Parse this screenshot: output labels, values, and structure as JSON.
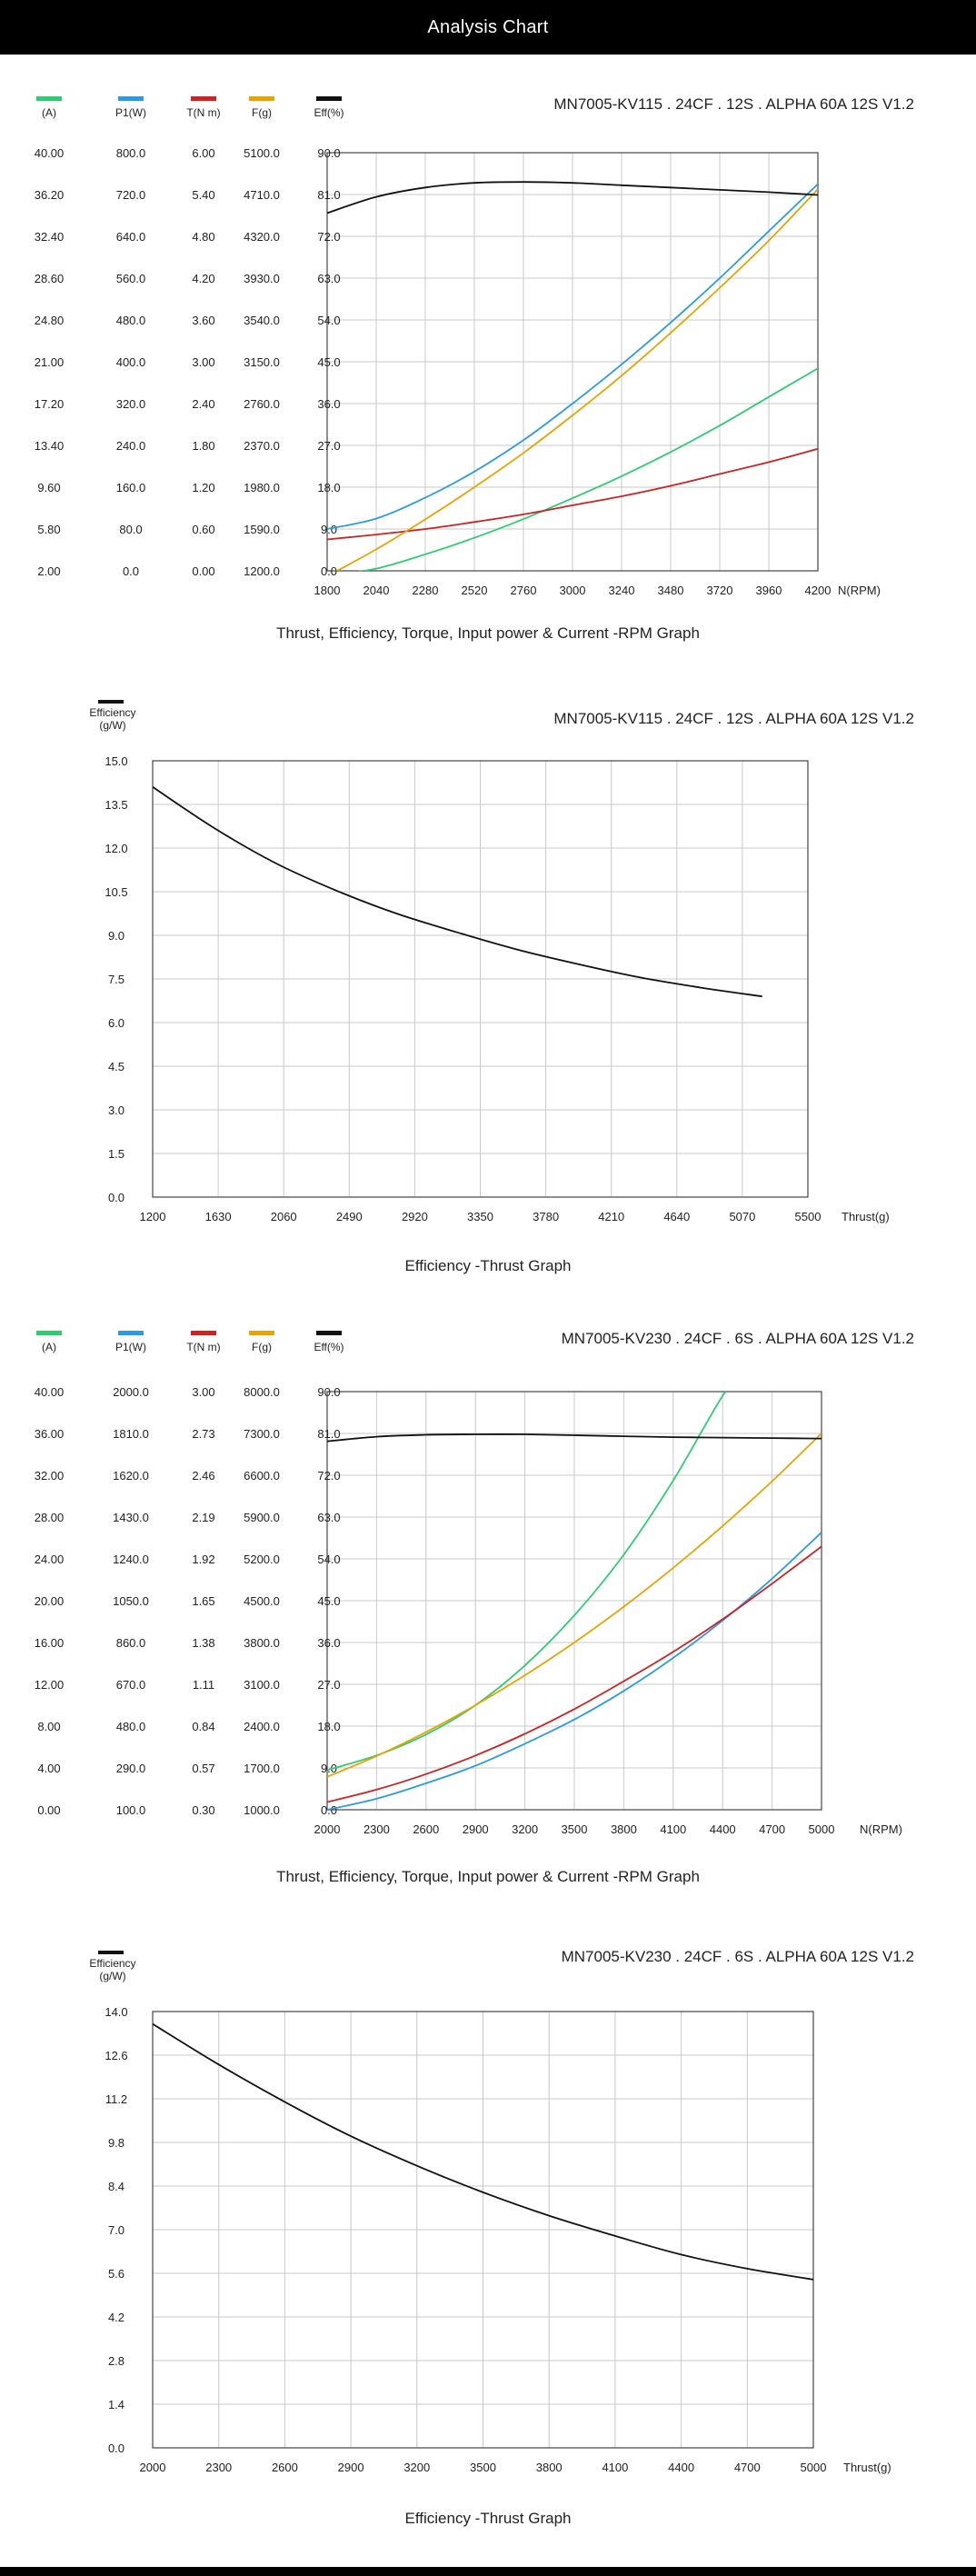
{
  "header": {
    "title": "Analysis Chart"
  },
  "charts": [
    {
      "model": "MN7005-KV115 . 24CF . 12S . ALPHA 60A 12S V1.2",
      "legend": [
        {
          "label": "(A)",
          "color": "#2ecc71"
        },
        {
          "label": "P1(W)",
          "color": "#2b9be0"
        },
        {
          "label": "T(N m)",
          "color": "#cc2222"
        },
        {
          "label": "F(g)",
          "color": "#e6a400"
        },
        {
          "label": "Eff(%)",
          "color": "#111111"
        }
      ],
      "caption": "Thrust, Efficiency, Torque, Input power & Current -RPM Graph"
    },
    {
      "model": "MN7005-KV115 . 24CF . 12S . ALPHA 60A 12S V1.2",
      "legend": [
        {
          "label": "Efficiency\n(g/W)",
          "color": "#111111"
        }
      ],
      "caption": "Efficiency -Thrust Graph"
    },
    {
      "model": "MN7005-KV230 . 24CF . 6S . ALPHA 60A 12S V1.2",
      "legend": [
        {
          "label": "(A)",
          "color": "#2ecc71"
        },
        {
          "label": "P1(W)",
          "color": "#2b9be0"
        },
        {
          "label": "T(N m)",
          "color": "#cc2222"
        },
        {
          "label": "F(g)",
          "color": "#e6a400"
        },
        {
          "label": "Eff(%)",
          "color": "#111111"
        }
      ],
      "caption": "Thrust, Efficiency, Torque, Input power & Current -RPM Graph"
    },
    {
      "model": "MN7005-KV230 . 24CF . 6S . ALPHA 60A 12S V1.2",
      "legend": [
        {
          "label": "Efficiency\n(g/W)",
          "color": "#111111"
        }
      ],
      "caption": "Efficiency -Thrust Graph"
    }
  ],
  "chart_data": [
    {
      "type": "line",
      "title": "Thrust, Efficiency, Torque, Input power & Current -RPM Graph",
      "subtitle": "MN7005-KV115 . 24CF . 12S . ALPHA 60A 12S V1.2",
      "xlabel": "N(RPM)",
      "xlim": [
        1800,
        4200
      ],
      "x_ticks": [
        "1800",
        "2040",
        "2280",
        "2520",
        "2760",
        "3000",
        "3240",
        "3480",
        "3720",
        "3960",
        "4200"
      ],
      "y_axes": [
        {
          "name": "(A)",
          "ticks": [
            "2.00",
            "5.80",
            "9.60",
            "13.40",
            "17.20",
            "21.00",
            "24.80",
            "28.60",
            "32.40",
            "36.20",
            "40.00"
          ]
        },
        {
          "name": "P1(W)",
          "ticks": [
            "0.0",
            "80.0",
            "160.0",
            "240.0",
            "320.0",
            "400.0",
            "480.0",
            "560.0",
            "640.0",
            "720.0",
            "800.0"
          ]
        },
        {
          "name": "T(N m)",
          "ticks": [
            "0.00",
            "0.60",
            "1.20",
            "1.80",
            "2.40",
            "3.00",
            "3.60",
            "4.20",
            "4.80",
            "5.40",
            "6.00"
          ]
        },
        {
          "name": "F(g)",
          "ticks": [
            "1200.0",
            "1590.0",
            "1980.0",
            "2370.0",
            "2760.0",
            "3150.0",
            "3540.0",
            "3930.0",
            "4320.0",
            "4710.0",
            "5100.0"
          ]
        },
        {
          "name": "Eff(%)",
          "ticks": [
            "0.0",
            "9.0",
            "18.0",
            "27.0",
            "36.0",
            "45.0",
            "54.0",
            "63.0",
            "72.0",
            "81.0",
            "90.0"
          ]
        }
      ],
      "grid": true,
      "series": [
        {
          "name": "(A)",
          "color": "#2ecc71",
          "ylim": [
            2,
            40
          ],
          "x": [
            1800,
            2040,
            2280,
            2520,
            2760,
            3000,
            3240,
            3480,
            3720,
            3960,
            4200
          ],
          "y": [
            1.6,
            2.2,
            3.5,
            5.0,
            6.7,
            8.6,
            10.6,
            12.8,
            15.2,
            17.8,
            20.4
          ]
        },
        {
          "name": "P1(W)",
          "color": "#2b9be0",
          "ylim": [
            0,
            800
          ],
          "x": [
            1800,
            2040,
            2280,
            2520,
            2760,
            3000,
            3240,
            3480,
            3720,
            3960,
            4200
          ],
          "y": [
            80,
            100,
            140,
            190,
            250,
            320,
            395,
            475,
            560,
            650,
            740
          ]
        },
        {
          "name": "T(N m)",
          "color": "#cc2222",
          "ylim": [
            0,
            6
          ],
          "x": [
            1800,
            2040,
            2280,
            2520,
            2760,
            3000,
            3240,
            3480,
            3720,
            3960,
            4200
          ],
          "y": [
            0.45,
            0.52,
            0.6,
            0.7,
            0.81,
            0.94,
            1.07,
            1.22,
            1.39,
            1.56,
            1.75
          ]
        },
        {
          "name": "F(g)",
          "color": "#e6a400",
          "ylim": [
            1200,
            5100
          ],
          "x": [
            1800,
            2040,
            2280,
            2520,
            2760,
            3000,
            3240,
            3480,
            3720,
            3960,
            4200
          ],
          "y": [
            1150,
            1400,
            1680,
            1980,
            2300,
            2650,
            3020,
            3420,
            3840,
            4280,
            4760
          ]
        },
        {
          "name": "Eff(%)",
          "color": "#111111",
          "ylim": [
            0,
            90
          ],
          "x": [
            1800,
            2040,
            2280,
            2520,
            2760,
            3000,
            3240,
            3480,
            3720,
            3960,
            4200
          ],
          "y": [
            77,
            80.5,
            82.5,
            83.5,
            83.7,
            83.5,
            83.0,
            82.5,
            82.0,
            81.5,
            80.9
          ]
        }
      ]
    },
    {
      "type": "line",
      "title": "Efficiency -Thrust Graph",
      "subtitle": "MN7005-KV115 . 24CF . 12S . ALPHA 60A 12S V1.2",
      "xlabel": "Thrust(g)",
      "ylabel": "Efficiency (g/W)",
      "xlim": [
        1200,
        5500
      ],
      "ylim": [
        0,
        15
      ],
      "x_ticks": [
        "1200",
        "1630",
        "2060",
        "2490",
        "2920",
        "3350",
        "3780",
        "4210",
        "4640",
        "5070",
        "5500"
      ],
      "y_ticks": [
        "0.0",
        "1.5",
        "3.0",
        "4.5",
        "6.0",
        "7.5",
        "9.0",
        "10.5",
        "12.0",
        "13.5",
        "15.0"
      ],
      "grid": true,
      "series": [
        {
          "name": "Efficiency",
          "color": "#111111",
          "x": [
            1200,
            1600,
            2000,
            2400,
            2800,
            3200,
            3600,
            4000,
            4400,
            4800,
            5200
          ],
          "y": [
            14.1,
            12.7,
            11.5,
            10.55,
            9.75,
            9.1,
            8.5,
            8.0,
            7.55,
            7.2,
            6.9
          ]
        }
      ]
    },
    {
      "type": "line",
      "title": "Thrust, Efficiency, Torque, Input power & Current -RPM Graph",
      "subtitle": "MN7005-KV230 . 24CF . 6S . ALPHA 60A 12S V1.2",
      "xlabel": "N(RPM)",
      "xlim": [
        2000,
        5000
      ],
      "x_ticks": [
        "2000",
        "2300",
        "2600",
        "2900",
        "3200",
        "3500",
        "3800",
        "4100",
        "4400",
        "4700",
        "5000"
      ],
      "y_axes": [
        {
          "name": "(A)",
          "ticks": [
            "0.00",
            "4.00",
            "8.00",
            "12.00",
            "16.00",
            "20.00",
            "24.00",
            "28.00",
            "32.00",
            "36.00",
            "40.00"
          ]
        },
        {
          "name": "P1(W)",
          "ticks": [
            "100.0",
            "290.0",
            "480.0",
            "670.0",
            "860.0",
            "1050.0",
            "1240.0",
            "1430.0",
            "1620.0",
            "1810.0",
            "2000.0"
          ]
        },
        {
          "name": "T(N m)",
          "ticks": [
            "0.30",
            "0.57",
            "0.84",
            "1.11",
            "1.38",
            "1.65",
            "1.92",
            "2.19",
            "2.46",
            "2.73",
            "3.00"
          ]
        },
        {
          "name": "F(g)",
          "ticks": [
            "1000.0",
            "1700.0",
            "2400.0",
            "3100.0",
            "3800.0",
            "4500.0",
            "5200.0",
            "5900.0",
            "6600.0",
            "7300.0",
            "8000.0"
          ]
        },
        {
          "name": "Eff(%)",
          "ticks": [
            "0.0",
            "9.0",
            "18.0",
            "27.0",
            "36.0",
            "45.0",
            "54.0",
            "63.0",
            "72.0",
            "81.0",
            "90.0"
          ]
        }
      ],
      "grid": true,
      "series": [
        {
          "name": "(A)",
          "color": "#2ecc71",
          "ylim": [
            0,
            40
          ],
          "x": [
            2000,
            2300,
            2600,
            2900,
            3200,
            3500,
            3800,
            4100,
            4400,
            4460
          ],
          "y": [
            3.8,
            5.2,
            7.2,
            10.0,
            13.8,
            18.6,
            24.4,
            31.5,
            39.6,
            40
          ]
        },
        {
          "name": "P1(W)",
          "color": "#2b9be0",
          "ylim": [
            100,
            2000
          ],
          "x": [
            2000,
            2300,
            2600,
            2900,
            3200,
            3500,
            3800,
            4100,
            4400,
            4700,
            5000
          ],
          "y": [
            100,
            150,
            220,
            300,
            400,
            510,
            640,
            790,
            960,
            1150,
            1360
          ]
        },
        {
          "name": "T(N m)",
          "color": "#cc2222",
          "ylim": [
            0.3,
            3.0
          ],
          "x": [
            2000,
            2300,
            2600,
            2900,
            3200,
            3500,
            3800,
            4100,
            4400,
            4700,
            5000
          ],
          "y": [
            0.35,
            0.43,
            0.53,
            0.65,
            0.79,
            0.95,
            1.13,
            1.32,
            1.53,
            1.76,
            2.0
          ]
        },
        {
          "name": "F(g)",
          "color": "#e6a400",
          "ylim": [
            1000,
            8000
          ],
          "x": [
            2000,
            2300,
            2600,
            2900,
            3200,
            3500,
            3800,
            4100,
            4400,
            4700,
            5000
          ],
          "y": [
            1550,
            1900,
            2300,
            2750,
            3250,
            3800,
            4400,
            5050,
            5750,
            6500,
            7300
          ]
        },
        {
          "name": "Eff(%)",
          "color": "#111111",
          "ylim": [
            0,
            90
          ],
          "x": [
            2000,
            2300,
            2600,
            2900,
            3200,
            3500,
            3800,
            4100,
            4400,
            4700,
            5000
          ],
          "y": [
            79.3,
            80.3,
            80.7,
            80.8,
            80.8,
            80.6,
            80.4,
            80.2,
            80.1,
            80.0,
            79.9
          ]
        }
      ]
    },
    {
      "type": "line",
      "title": "Efficiency -Thrust Graph",
      "subtitle": "MN7005-KV230 . 24CF . 6S . ALPHA 60A 12S V1.2",
      "xlabel": "Thrust(g)",
      "ylabel": "Efficiency (g/W)",
      "xlim": [
        2000,
        5000
      ],
      "ylim": [
        0,
        14
      ],
      "x_ticks": [
        "2000",
        "2300",
        "2600",
        "2900",
        "3200",
        "3500",
        "3800",
        "4100",
        "4400",
        "4700",
        "5000"
      ],
      "y_ticks": [
        "0.0",
        "1.4",
        "2.8",
        "4.2",
        "5.6",
        "7.0",
        "8.4",
        "9.8",
        "11.2",
        "12.6",
        "14.0"
      ],
      "grid": true,
      "series": [
        {
          "name": "Efficiency",
          "color": "#111111",
          "x": [
            2000,
            2300,
            2600,
            2900,
            3200,
            3500,
            3800,
            4100,
            4400,
            4700,
            5000
          ],
          "y": [
            13.6,
            12.3,
            11.1,
            10.0,
            9.05,
            8.2,
            7.45,
            6.8,
            6.2,
            5.75,
            5.4
          ]
        }
      ]
    }
  ]
}
